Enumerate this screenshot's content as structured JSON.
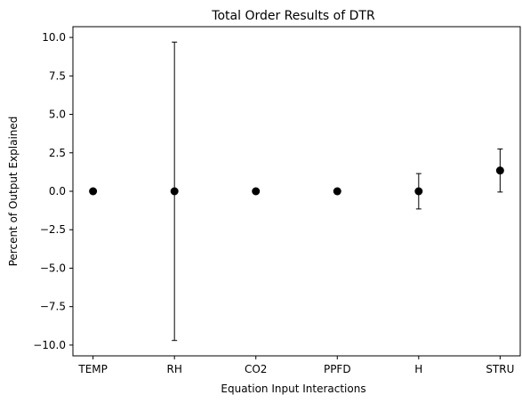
{
  "chart_data": {
    "type": "scatter",
    "title": "Total Order Results of DTR",
    "xlabel": "Equation Input Interactions",
    "ylabel": "Percent of Output Explained",
    "categories": [
      "TEMP",
      "RH",
      "CO2",
      "PPFD",
      "H",
      "STRU"
    ],
    "series": [
      {
        "values": [
          0.0,
          0.0,
          0.0,
          0.0,
          0.0,
          1.35
        ],
        "error_low": [
          0.0,
          -9.7,
          0.0,
          0.0,
          -1.15,
          -0.05
        ],
        "error_high": [
          0.0,
          9.7,
          0.0,
          0.0,
          1.15,
          2.75
        ]
      }
    ],
    "ylim": [
      -10.7,
      10.7
    ],
    "yticks": [
      -10.0,
      -7.5,
      -5.0,
      -2.5,
      0.0,
      2.5,
      5.0,
      7.5,
      10.0
    ],
    "ytick_labels": [
      "−10.0",
      "−7.5",
      "−5.0",
      "−2.5",
      "0.0",
      "2.5",
      "5.0",
      "7.5",
      "10.0"
    ],
    "grid": false,
    "marker_color": "#000000"
  }
}
